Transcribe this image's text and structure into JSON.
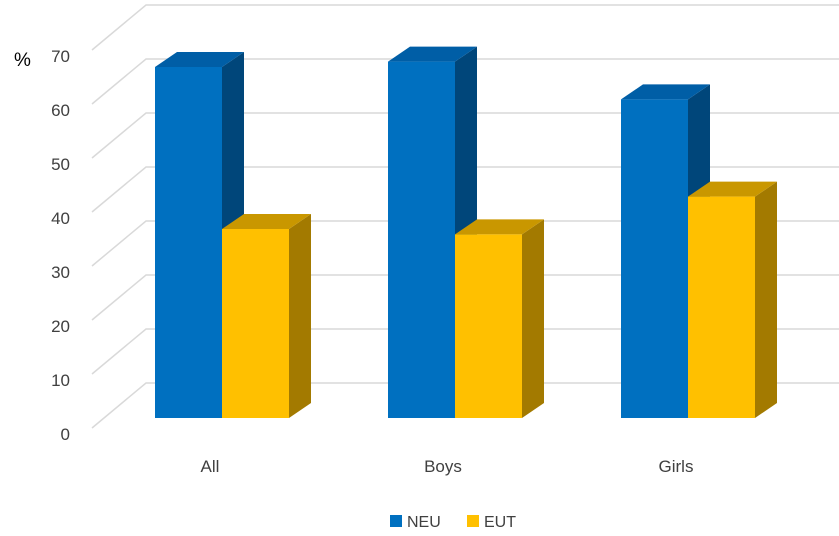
{
  "chart_data": {
    "type": "bar",
    "style": "3d-clustered-column",
    "y_unit_label": "%",
    "categories": [
      "All",
      "Boys",
      "Girls"
    ],
    "series": [
      {
        "name": "NEU",
        "values": [
          65,
          66,
          59
        ],
        "color": "#0070C0",
        "side_color": "#00467A",
        "top_color": "#005EA6"
      },
      {
        "name": "EUT",
        "values": [
          35,
          34,
          41
        ],
        "color": "#FFC000",
        "side_color": "#A37A00",
        "top_color": "#C99700"
      }
    ],
    "ylim": [
      0,
      70
    ],
    "yticks": [
      0,
      10,
      20,
      30,
      40,
      50,
      60,
      70
    ],
    "grid": true,
    "legend_position": "bottom",
    "xlabel": "",
    "ylabel": ""
  }
}
